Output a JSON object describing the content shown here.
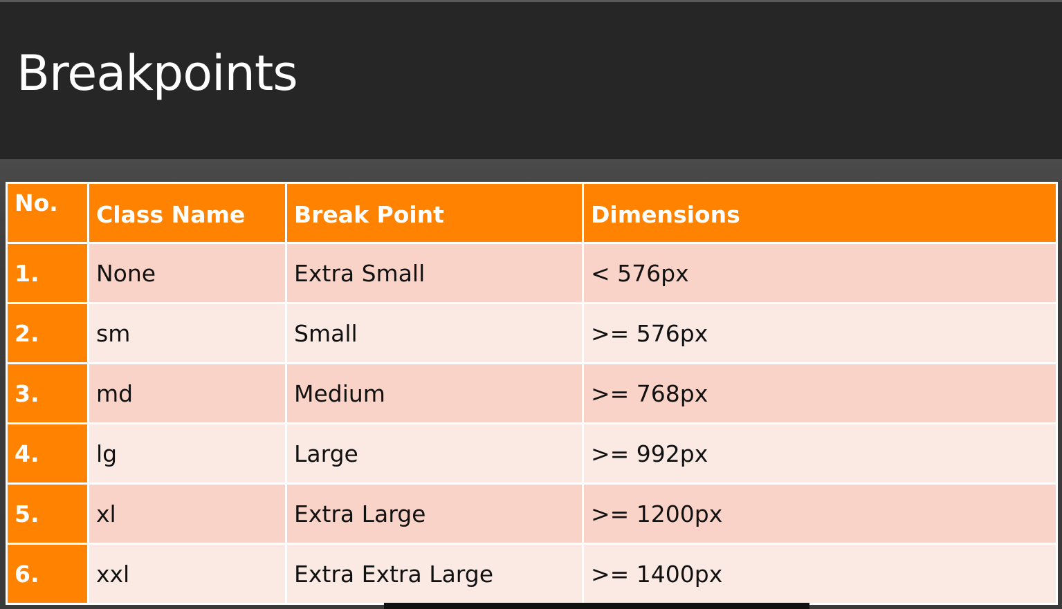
{
  "slide": {
    "title": "Breakpoints"
  },
  "table": {
    "headers": {
      "no": "No.",
      "class_name": "Class Name",
      "break_point": "Break Point",
      "dimensions": "Dimensions"
    },
    "rows": [
      {
        "no": "1.",
        "class_name": "None",
        "break_point": "Extra Small",
        "dimensions": "< 576px"
      },
      {
        "no": "2.",
        "class_name": "sm",
        "break_point": "Small",
        "dimensions": ">= 576px"
      },
      {
        "no": "3.",
        "class_name": "md",
        "break_point": "Medium",
        "dimensions": ">= 768px"
      },
      {
        "no": "4.",
        "class_name": "lg",
        "break_point": "Large",
        "dimensions": ">= 992px"
      },
      {
        "no": "5.",
        "class_name": "xl",
        "break_point": "Extra Large",
        "dimensions": ">= 1200px"
      },
      {
        "no": "6.",
        "class_name": "xxl",
        "break_point": "Extra Extra Large",
        "dimensions": ">= 1400px"
      }
    ]
  },
  "colors": {
    "accent": "#ff8200",
    "row_odd": "#fad3c8",
    "row_even": "#fbeae4",
    "title_bar": "#262626"
  }
}
